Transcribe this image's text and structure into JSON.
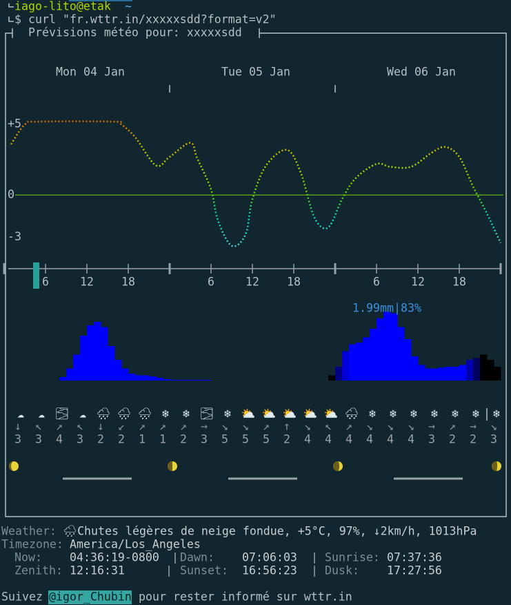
{
  "prompt": {
    "user": "iago-lito@etak",
    "dir": "~",
    "symbol": "$",
    "command": "curl \"fr.wttr.in/xxxxxsdd?format=v2\""
  },
  "title": "Prévisions météo pour: xxxxxsdd",
  "chart_data": [
    {
      "type": "line",
      "days": [
        "Mon 04 Jan",
        "Tue 05 Jan",
        "Wed 06 Jan"
      ],
      "x": [
        1,
        3,
        5,
        16,
        17,
        19,
        22,
        24,
        27,
        28,
        30,
        31,
        33,
        35,
        36,
        38,
        41,
        43,
        45,
        47,
        49,
        51,
        54,
        56,
        59,
        62,
        64,
        66,
        68,
        70,
        72
      ],
      "values": [
        3.6,
        5.0,
        5.2,
        5.2,
        5.0,
        4.1,
        2.1,
        2.7,
        3.7,
        2.6,
        0.4,
        -1.8,
        -3.6,
        -2.8,
        -0.3,
        2.1,
        3.2,
        1.6,
        -1.6,
        -2.3,
        -0.3,
        1.2,
        2.2,
        2.0,
        2.0,
        3.0,
        3.4,
        2.7,
        0.6,
        -1.3,
        -3.4
      ],
      "ylim": [
        -3.9,
        5.5
      ],
      "yticks": [
        {
          "value": 5,
          "label": "+5"
        },
        0,
        -3
      ],
      "xlim": [
        0,
        72
      ],
      "xticks": [
        6,
        12,
        18,
        {
          "value": 30,
          "label": "6"
        },
        {
          "value": 36,
          "label": "12"
        },
        {
          "value": 42,
          "label": "18"
        },
        {
          "value": 54,
          "label": "6"
        },
        {
          "value": 60,
          "label": "12"
        },
        {
          "value": 66,
          "label": "18"
        }
      ],
      "day_ticks": [
        0,
        24,
        48,
        72
      ],
      "now": 4.6
    },
    {
      "type": "bar",
      "annotation": "1.99mm|83%",
      "x": [
        8,
        9,
        10,
        11,
        12,
        13,
        14,
        15,
        16,
        17,
        18,
        19,
        20,
        21,
        22,
        23,
        24,
        25,
        26,
        27,
        28,
        29,
        47,
        48,
        49,
        50,
        51,
        52,
        53,
        54,
        55,
        56,
        57,
        58,
        59,
        60,
        61,
        62,
        63,
        64,
        65,
        66,
        67,
        68,
        69,
        70,
        71
      ],
      "values": [
        0.1,
        0.35,
        0.75,
        1.3,
        1.6,
        1.7,
        1.55,
        1.0,
        0.6,
        0.35,
        0.2,
        0.15,
        0.15,
        0.12,
        0.08,
        0.04,
        0.02,
        0.02,
        0.02,
        0.02,
        0.02,
        0.02,
        0.15,
        0.4,
        0.85,
        1.05,
        1.1,
        1.25,
        1.5,
        1.8,
        1.99,
        1.95,
        1.55,
        1.2,
        0.7,
        0.45,
        0.35,
        0.35,
        0.38,
        0.4,
        0.4,
        0.45,
        0.6,
        0.65,
        0.75,
        0.6,
        0.4
      ],
      "colors": [
        "#0000ff",
        "#0000ff",
        "#0000ff",
        "#0000ff",
        "#0000ff",
        "#0000ff",
        "#0000ff",
        "#0000ff",
        "#0000ff",
        "#0000ff",
        "#0000ff",
        "#0000ff",
        "#0000ff",
        "#0000ff",
        "#0000ff",
        "#0000ff",
        "#0000ff",
        "#0000ff",
        "#0000ff",
        "#0000ff",
        "#0000ff",
        "#0000ff",
        "#000000",
        "#000080",
        "#0000d7",
        "#0000ff",
        "#0000ff",
        "#0000ff",
        "#0000ff",
        "#0000ff",
        "#0000ff",
        "#0000ff",
        "#0000ff",
        "#0000ff",
        "#0000ff",
        "#0000ff",
        "#0000ff",
        "#0000ff",
        "#0000ff",
        "#0000ff",
        "#0000ff",
        "#0000ff",
        "#0000af",
        "#00005f",
        "#000000",
        "#000000",
        "#000000"
      ],
      "ylim": [
        0,
        2
      ]
    }
  ],
  "wind": {
    "icons": [
      "☁",
      "☁",
      "🌫",
      "☁",
      "🌧",
      "🌧",
      "🌧",
      "❄",
      "❄",
      "🌫",
      "❄",
      "⛅",
      "⛅",
      "⛅",
      "⛅",
      "⛅",
      "🌨",
      "❄",
      "❄",
      "❄",
      "❄",
      "❄",
      "❄",
      "❄"
    ],
    "directions": [
      "↓",
      "↖",
      "↗",
      "↖",
      "↓",
      "↙",
      "↗",
      "↗",
      "↗",
      "→",
      "↘",
      "↘",
      "↗",
      "↑",
      "↘",
      "↖",
      "↗",
      "↘",
      "↘",
      "↘",
      "→",
      "↗",
      "→",
      "↘"
    ],
    "speeds": [
      3,
      3,
      4,
      3,
      2,
      2,
      1,
      1,
      2,
      3,
      5,
      5,
      5,
      2,
      4,
      4,
      4,
      4,
      4,
      4,
      3,
      2,
      2,
      3
    ]
  },
  "info": {
    "weather_label": "Weather:",
    "weather": "🌧Chutes légères de neige fondue, +5°C, 97%, ↓2km/h, 1013hPa",
    "timezone_label": "Timezone:",
    "timezone": "America/Los_Angeles",
    "rows": [
      [
        [
          "Now:",
          "04:36:19-0800"
        ],
        [
          "Dawn:",
          "07:06:03"
        ],
        [
          "Sunrise:",
          "07:37:36"
        ]
      ],
      [
        [
          "Zenith:",
          "12:16:31"
        ],
        [
          "Sunset:",
          "16:56:23"
        ],
        [
          "Dusk:",
          "17:27:56"
        ]
      ]
    ]
  },
  "footer": {
    "before": "Suivez",
    "handle": "@igor_Chubin",
    "after": "pour rester informé sur wttr.in"
  }
}
